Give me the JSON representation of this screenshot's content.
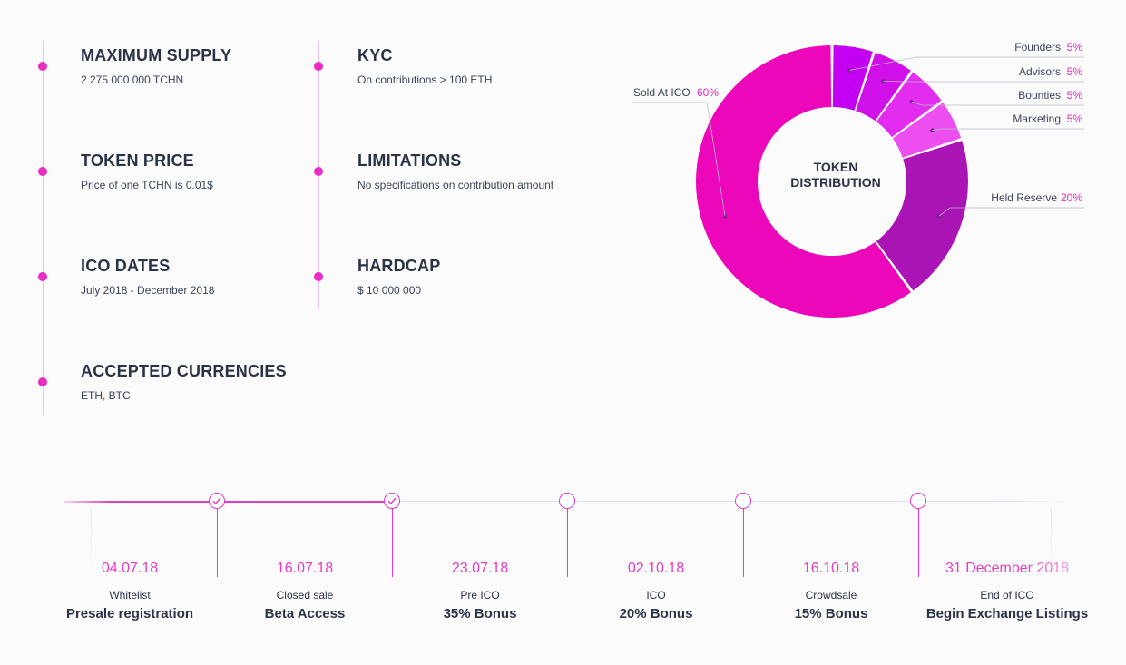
{
  "info": {
    "max_supply_title": "MAXIMUM SUPPLY",
    "max_supply_value": "2 275 000 000 TCHN",
    "token_price_title": "TOKEN PRICE",
    "token_price_value": "Price of one TCHN is 0.01$",
    "ico_dates_title": "ICO DATES",
    "ico_dates_value": "July 2018 - December 2018",
    "currencies_title": "ACCEPTED CURRENCIES",
    "currencies_value": "ETH, BTC",
    "kyc_title": "KYC",
    "kyc_value": "On contributions > 100 ETH",
    "limitations_title": "LIMITATIONS",
    "limitations_value": "No specifications on contribution amount",
    "hardcap_title": "HARDCAP",
    "hardcap_value": "$ 10 000 000"
  },
  "chart_data": {
    "type": "pie",
    "title": "TOKEN DISTRIBUTION",
    "series": [
      {
        "name": "Founders",
        "value": 5,
        "label": "5%",
        "color": "#c400f2"
      },
      {
        "name": "Advisors",
        "value": 5,
        "label": "5%",
        "color": "#d10fe8"
      },
      {
        "name": "Bounties",
        "value": 5,
        "label": "5%",
        "color": "#e22cf0"
      },
      {
        "name": "Marketing",
        "value": 5,
        "label": "5%",
        "color": "#ec4ef0"
      },
      {
        "name": "Held Reserve",
        "value": 20,
        "label": "20%",
        "color": "#ab14b4"
      },
      {
        "name": "Sold At ICO",
        "value": 60,
        "label": "60%",
        "color": "#ec07bb"
      }
    ]
  },
  "timeline": {
    "items": [
      {
        "date": "04.07.18",
        "stage": "Whitelist",
        "detail": "Presale registration",
        "done": true
      },
      {
        "date": "16.07.18",
        "stage": "Closed sale",
        "detail": "Beta Access",
        "done": true
      },
      {
        "date": "23.07.18",
        "stage": "Pre ICO",
        "detail": "35% Bonus",
        "done": false
      },
      {
        "date": "02.10.18",
        "stage": "ICO",
        "detail": "20% Bonus",
        "done": false
      },
      {
        "date": "16.10.18",
        "stage": "Crowdsale",
        "detail": "15% Bonus",
        "done": false
      },
      {
        "date": "31 December 2018",
        "stage": "End of ICO",
        "detail": "Begin Exchange Listings",
        "done": false
      }
    ]
  },
  "colors": {
    "accent": "#e52ac4",
    "text": "#2b3447"
  }
}
